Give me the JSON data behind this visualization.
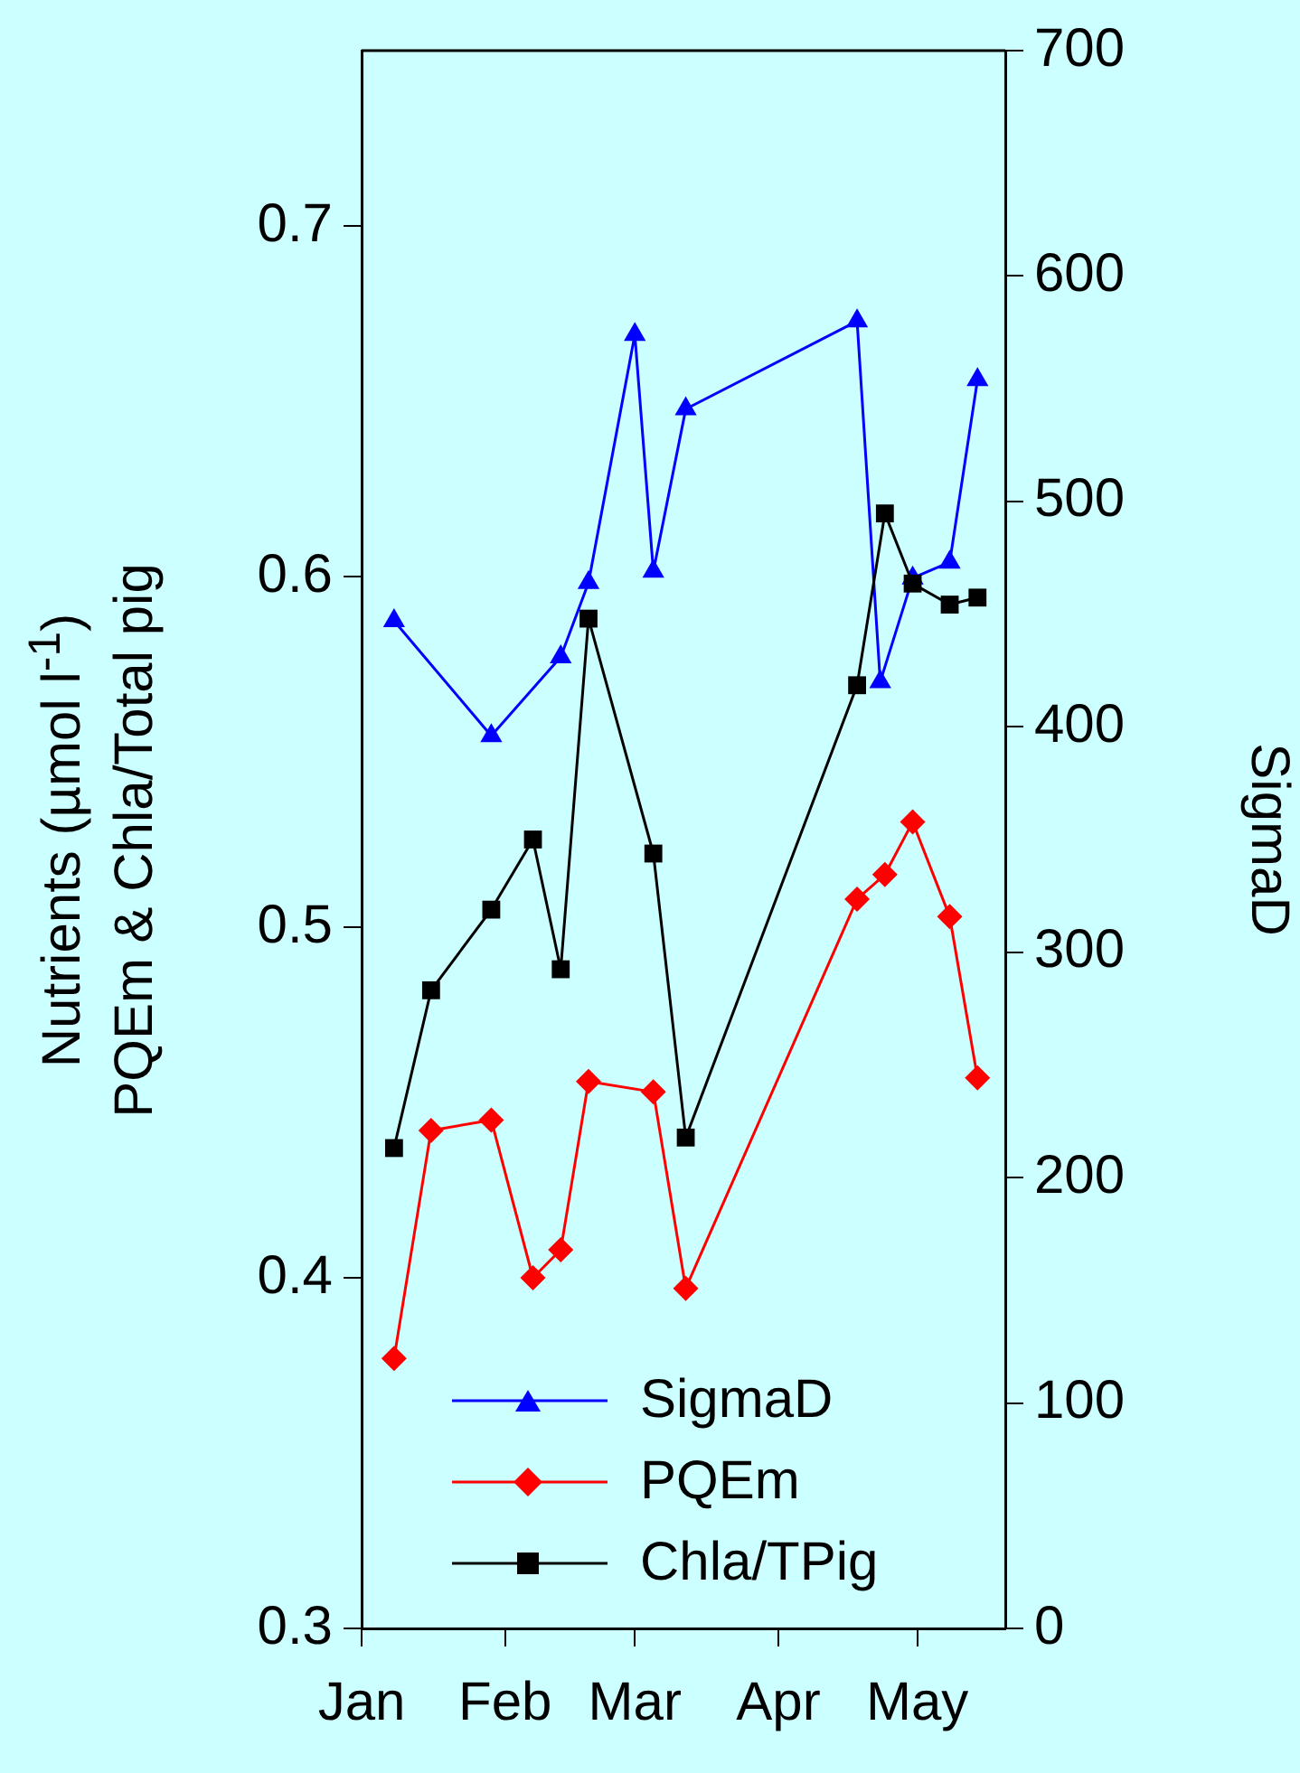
{
  "chart_data": {
    "type": "line",
    "ylabel": "Nutrients (µmol l$^{-1}$)\nPQEm & Chla/Total pig",
    "y2label": "SigmaD",
    "xlim": [
      "--01-01",
      "--05-20"
    ],
    "xticks": [
      {
        "value": "--01-01",
        "label": "Jan"
      },
      {
        "value": "--02-01",
        "label": "Feb"
      },
      {
        "value": "--03-01",
        "label": "Mar"
      },
      {
        "value": "--04-01",
        "label": "Apr"
      },
      {
        "value": "--05-01",
        "label": "May"
      }
    ],
    "ylim": [
      0.3,
      0.75
    ],
    "yticks": [
      0.3,
      0.4,
      0.5,
      0.6,
      0.7
    ],
    "y2lim": [
      0,
      700
    ],
    "y2ticks": [
      0,
      100,
      200,
      300,
      400,
      500,
      600,
      700
    ],
    "grid": false,
    "legend": "bottom",
    "line_style": "solid",
    "series": [
      {
        "name": "SigmaD",
        "color": "#0000ff",
        "marker": "triangle",
        "axis": "y2",
        "x": [
          "--01-08",
          "--01-29",
          "--02-13",
          "--02-19",
          "--03-01",
          "--03-05",
          "--03-12",
          "--04-18",
          "--04-23",
          "--04-30",
          "--05-08",
          "--05-14"
        ],
        "values": [
          447,
          396,
          431,
          464,
          574,
          469,
          541,
          580,
          420,
          466,
          473,
          554
        ]
      },
      {
        "name": "PQEm",
        "color": "#ff0000",
        "marker": "diamond",
        "x": [
          "--01-08",
          "--01-16",
          "--01-29",
          "--02-07",
          "--02-13",
          "--02-19",
          "--03-05",
          "--03-12",
          "--04-18",
          "--04-24",
          "--04-30",
          "--05-08",
          "--05-14"
        ],
        "values": [
          0.377,
          0.442,
          0.445,
          0.4,
          0.408,
          0.456,
          0.453,
          0.397,
          0.508,
          0.515,
          0.53,
          0.503,
          0.457
        ]
      },
      {
        "name": "Chla/TPig",
        "color": "#000000",
        "marker": "square",
        "x": [
          "--01-08",
          "--01-16",
          "--01-29",
          "--02-07",
          "--02-13",
          "--02-19",
          "--03-05",
          "--03-12",
          "--04-18",
          "--04-24",
          "--04-30",
          "--05-08",
          "--05-14"
        ],
        "values": [
          0.437,
          0.482,
          0.505,
          0.525,
          0.488,
          0.588,
          0.521,
          0.44,
          0.569,
          0.618,
          0.598,
          0.592,
          0.594
        ]
      }
    ]
  }
}
